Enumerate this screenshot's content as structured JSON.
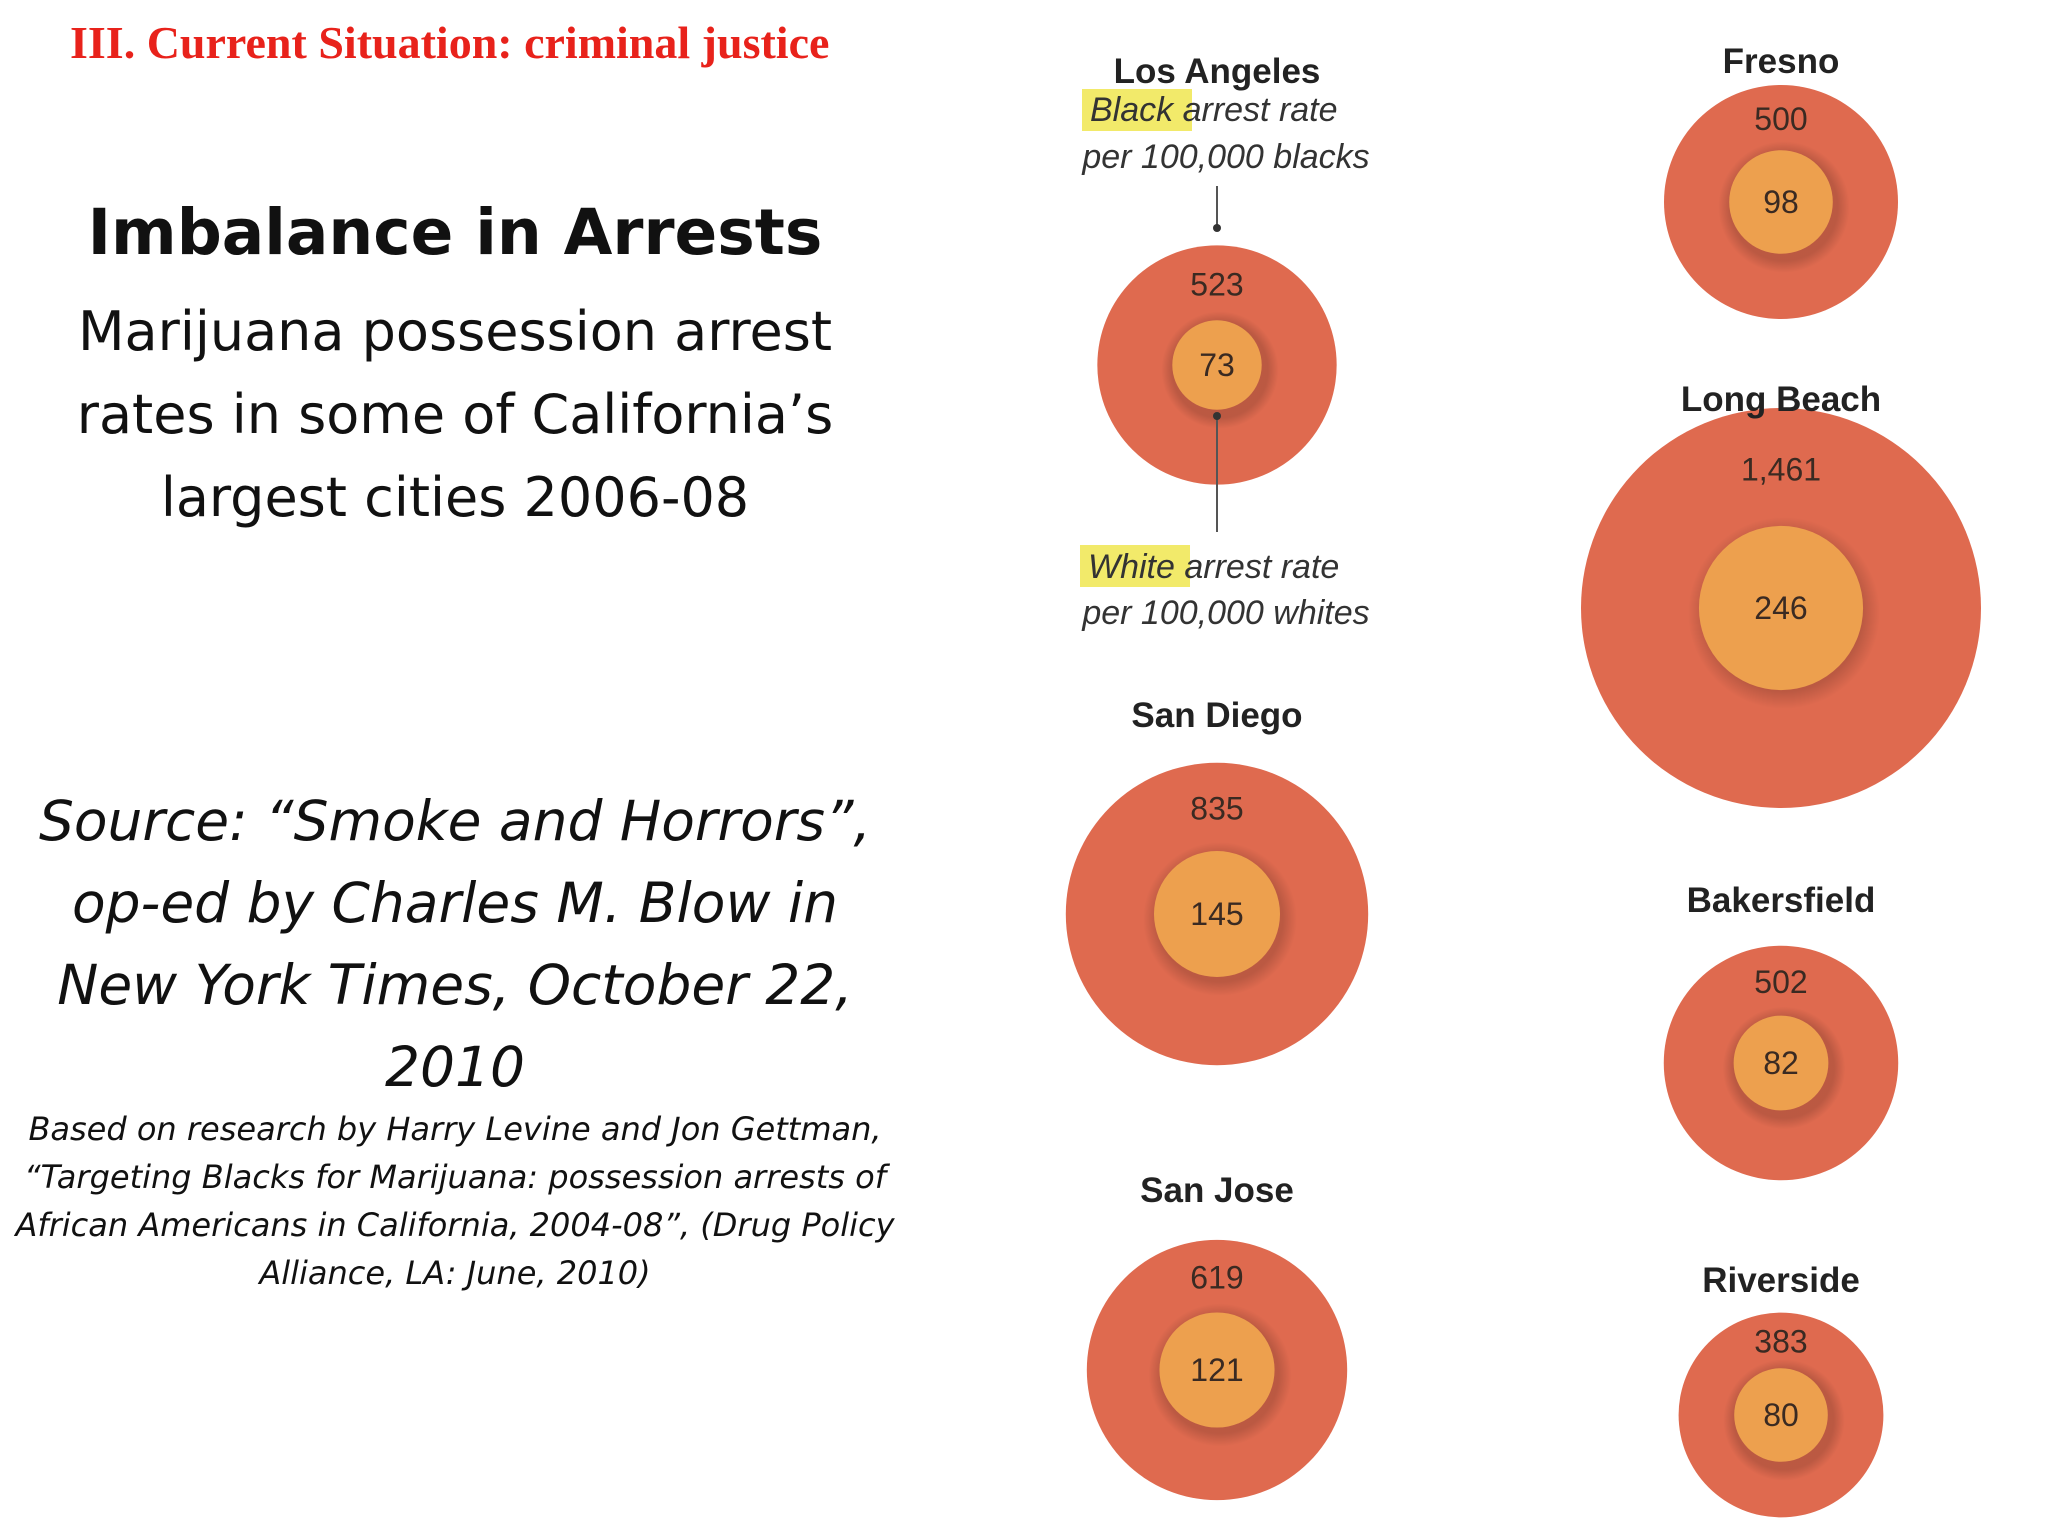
{
  "slide": {
    "heading": "III. Current Situation: criminal justice",
    "title": "Imbalance in Arrests",
    "subtitle": "Marijuana possession arrest rates in some of California’s largest cities 2006-08",
    "source": "Source: “Smoke and Horrors”, op-ed by Charles M. Blow in New York Times, October 22, 2010",
    "research": "Based on research by Harry Levine and Jon Gettman, “Targeting Blacks for Marijuana: possession arrests of African Americans in California, 2004-08”, (Drug Policy Alliance, LA: June, 2010)"
  },
  "colors": {
    "heading": "#e8221b",
    "black_rate": "#df6a4f",
    "white_rate": "#eda04e",
    "highlight": "#f2ea6a"
  },
  "legend": {
    "black_highlight": "Black",
    "black_rest": " arrest rate",
    "black_line2": "per 100,000 blacks",
    "white_highlight": "White",
    "white_rest": " arrest rate",
    "white_line2": "per 100,000 whites"
  },
  "chart_data": {
    "type": "nested-bubble",
    "series": [
      {
        "name": "Black arrest rate per 100,000 blacks"
      },
      {
        "name": "White arrest rate per 100,000 whites"
      }
    ],
    "cities": [
      {
        "city": "Los Angeles",
        "black": 523,
        "white": 73,
        "black_label": "523",
        "white_label": "73"
      },
      {
        "city": "San Diego",
        "black": 835,
        "white": 145,
        "black_label": "835",
        "white_label": "145"
      },
      {
        "city": "San Jose",
        "black": 619,
        "white": 121,
        "black_label": "619",
        "white_label": "121"
      },
      {
        "city": "Fresno",
        "black": 500,
        "white": 98,
        "black_label": "500",
        "white_label": "98"
      },
      {
        "city": "Long Beach",
        "black": 1461,
        "white": 246,
        "black_label": "1,461",
        "white_label": "246"
      },
      {
        "city": "Bakersfield",
        "black": 502,
        "white": 82,
        "black_label": "502",
        "white_label": "82"
      },
      {
        "city": "Riverside",
        "black": 383,
        "white": 80,
        "black_label": "383",
        "white_label": "80"
      }
    ]
  }
}
